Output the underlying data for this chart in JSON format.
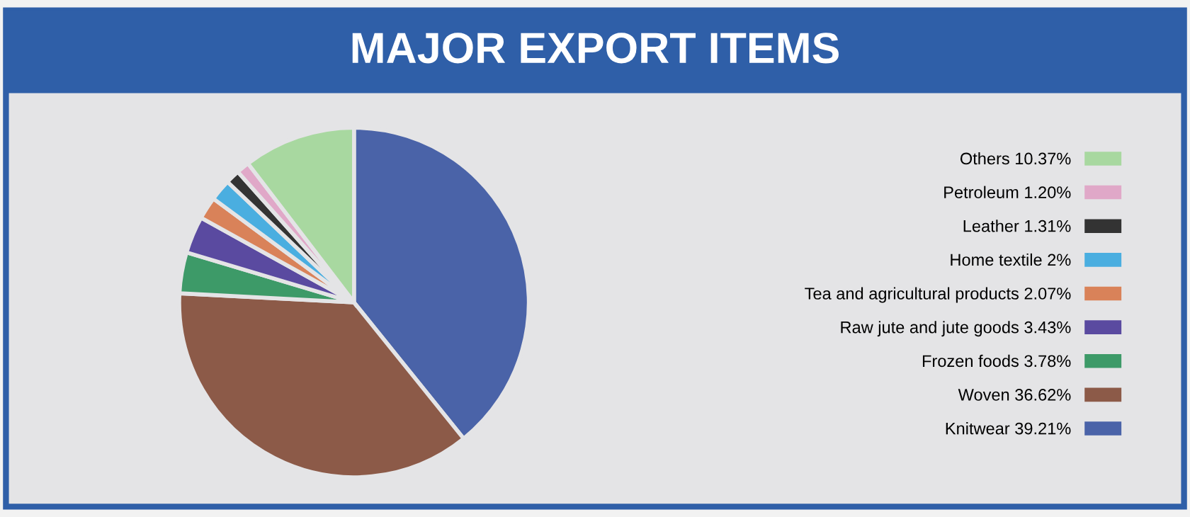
{
  "chart_data": {
    "type": "pie",
    "title": "MAJOR EXPORT ITEMS",
    "categories": [
      "Knitwear",
      "Woven",
      "Frozen foods",
      "Raw jute and jute goods",
      "Tea and agricultural products",
      "Home textile",
      "Leather",
      "Petroleum",
      "Others"
    ],
    "values": [
      39.21,
      36.62,
      3.78,
      3.43,
      2.07,
      2,
      1.31,
      1.2,
      10.37
    ],
    "value_labels": [
      "39.21%",
      "36.62%",
      "3.78%",
      "3.43%",
      "2.07%",
      "2%",
      "1.31%",
      "1.20%",
      "10.37%"
    ],
    "colors": [
      "#4a63a8",
      "#8c5a48",
      "#3d9a68",
      "#5a4aa0",
      "#d98259",
      "#4aaee0",
      "#333333",
      "#e0a8c8",
      "#a8d8a0"
    ],
    "legend": "right"
  }
}
